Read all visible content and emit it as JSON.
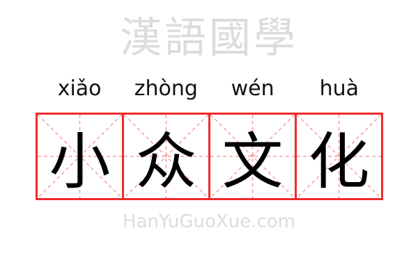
{
  "pinyin": [
    "xiǎo",
    "zhòng",
    "wén",
    "huà"
  ],
  "characters": [
    "小",
    "众",
    "文",
    "化"
  ],
  "watermark": {
    "chinese": "漢語國學",
    "latin": "HanYuGuoXue.com"
  },
  "colors": {
    "grid_border": "#f02a2a",
    "guide_lines": "#f5a0a0",
    "text": "#000000"
  }
}
